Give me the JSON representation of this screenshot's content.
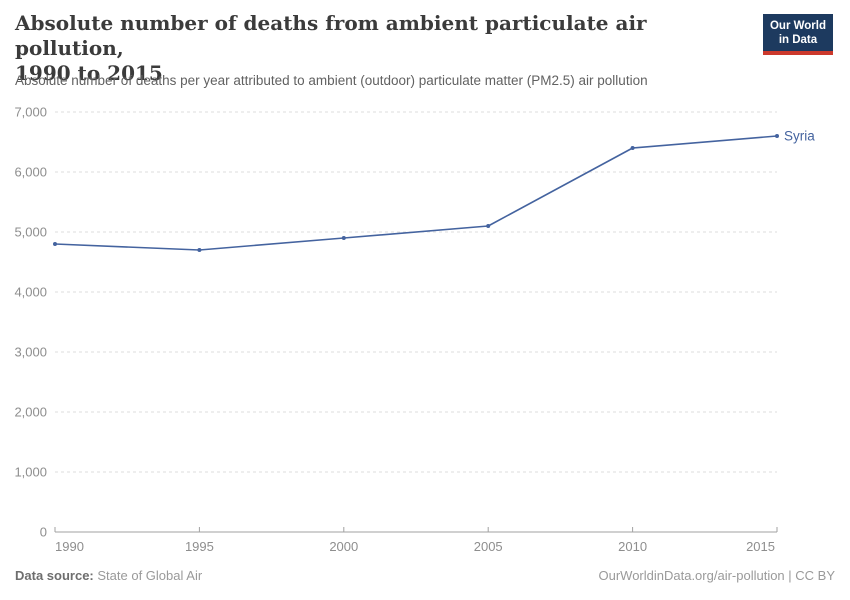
{
  "header": {
    "title_lines": [
      "Absolute number of deaths from ambient particulate air pollution,",
      "1990 to 2015"
    ],
    "subtitle": "Absolute number of deaths per year attributed to ambient (outdoor) particulate matter (PM2.5) air pollution",
    "logo": {
      "line1": "Our World",
      "line2": "in Data"
    }
  },
  "chart_data": {
    "type": "line",
    "title": "Absolute number of deaths from ambient particulate air pollution, 1990 to 2015",
    "subtitle": "Absolute number of deaths per year attributed to ambient (outdoor) particulate matter (PM2.5) air pollution",
    "x": [
      1990,
      1995,
      2000,
      2005,
      2010,
      2015
    ],
    "series": [
      {
        "name": "Syria",
        "values": [
          4800,
          4700,
          4900,
          5100,
          6400,
          6600
        ],
        "color": "#44639f"
      }
    ],
    "x_ticks": [
      1990,
      1995,
      2000,
      2005,
      2010,
      2015
    ],
    "y_ticks": [
      0,
      1000,
      2000,
      3000,
      4000,
      5000,
      6000,
      7000
    ],
    "xlim": [
      1990,
      2015
    ],
    "ylim": [
      0,
      7000
    ],
    "grid": "horizontal-dashed",
    "legend": "line-end-label",
    "end_label": "Syria"
  },
  "footer": {
    "source_label": "Data source:",
    "source_value": "State of Global Air",
    "attribution": "OurWorldinData.org/air-pollution | CC BY"
  },
  "colors": {
    "line": "#44639f",
    "title": "#3b3b3b",
    "subtitle": "#616161",
    "tick_label": "#8e8e8e",
    "gridline": "#dddddd",
    "axis": "#a1a1a1",
    "logo_bg": "#1d3a5f",
    "logo_stripe": "#cc392c",
    "footer_text": "#9a9a9a"
  }
}
